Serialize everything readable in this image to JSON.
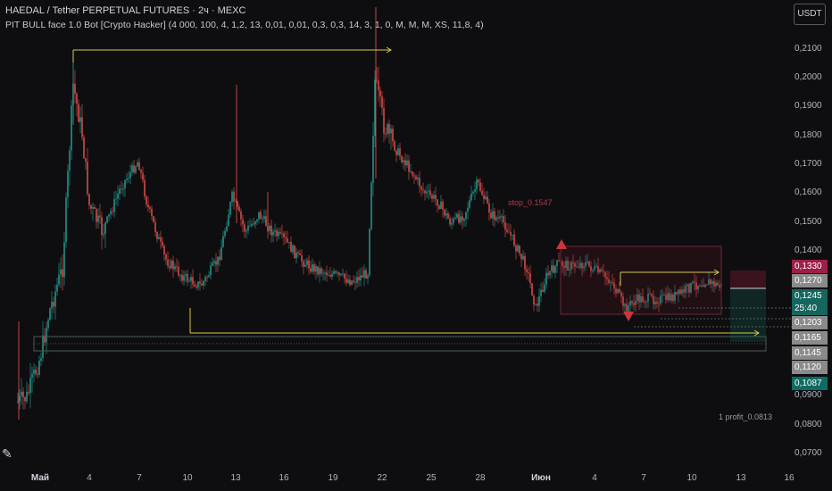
{
  "header": {
    "title": "HAEDAL / Tether PERPETUAL FUTURES · 2ч · MEXC",
    "indicator": "PIT BULL face 1.0 Bot [Crypto Hacker] (4 000, 100, 4, 1,2, 13, 0,01, 0,01, 0,3, 0,3, 14, 3, 1, 0, M, M, M, XS, 11,8, 4)"
  },
  "currency_button": "USDT",
  "price_axis": {
    "ticks": [
      "0,2100",
      "0,2000",
      "0,1900",
      "0,1800",
      "0,1700",
      "0,1600",
      "0,1500",
      "0,1400",
      "0,0900",
      "0,0800",
      "0,0700"
    ]
  },
  "price_labels": [
    {
      "text": "0,1330",
      "color": "#9c1f47"
    },
    {
      "text": "0,1270",
      "color": "#8a8a8a"
    },
    {
      "text": "0,1245",
      "color": "#14665e"
    },
    {
      "text": "25:40",
      "color": "#14665e"
    },
    {
      "text": "0,1203",
      "color": "#8a8a8a"
    },
    {
      "text": "0,1165",
      "color": "#8a8a8a"
    },
    {
      "text": "0,1145",
      "color": "#8a8a8a"
    },
    {
      "text": "0,1120",
      "color": "#8a8a8a"
    },
    {
      "text": "0,1087",
      "color": "#0f6b62"
    }
  ],
  "time_axis": [
    "Май",
    "4",
    "7",
    "10",
    "13",
    "16",
    "19",
    "22",
    "25",
    "28",
    "Июн",
    "4",
    "7",
    "10",
    "13",
    "16"
  ],
  "annotations": {
    "stop": "stop_0.1547",
    "profit": "1 profit_0.0813"
  },
  "colors": {
    "up": "#26a69a",
    "down": "#ef5350",
    "arrow_line": "#d4c94a",
    "stop_text": "#b23a48",
    "signal_marker": "#c9373d",
    "background": "#0e0e10"
  }
}
